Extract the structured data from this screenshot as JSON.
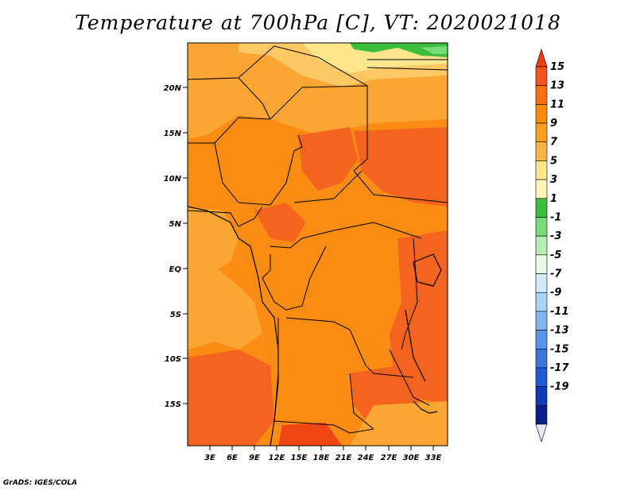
{
  "title": "Temperature at 700hPa [C], VT: 2020021018",
  "credit": "GrADS: IGES/COLA",
  "map": {
    "lat_labels": [
      "20N",
      "15N",
      "10N",
      "5N",
      "EQ",
      "5S",
      "10S",
      "15S"
    ],
    "lon_labels": [
      "3E",
      "6E",
      "9E",
      "12E",
      "15E",
      "18E",
      "21E",
      "24E",
      "27E",
      "30E",
      "33E"
    ]
  },
  "colorbar": {
    "labels": [
      "15",
      "13",
      "11",
      "9",
      "7",
      "5",
      "3",
      "1",
      "-1",
      "-3",
      "-5",
      "-7",
      "-9",
      "-11",
      "-13",
      "-15",
      "-17",
      "-19"
    ],
    "colors": [
      "#f03c14",
      "#f5501e",
      "#fa6e14",
      "#fa8c0a",
      "#fba01e",
      "#fcb446",
      "#fde68c",
      "#fff5b4",
      "#3cbe3c",
      "#78dc78",
      "#b4f0b4",
      "#e6fae6",
      "#d2ebfa",
      "#aad2fa",
      "#82b4f0",
      "#5a96e6",
      "#3c78dc",
      "#1e5ad2",
      "#0f3cb4",
      "#0a1e8c",
      "#e6e6fa"
    ]
  },
  "colors": {
    "c15": "#f04616",
    "c13": "#f5641e",
    "c11": "#fa8c14",
    "c9": "#fba532",
    "c7": "#fcc864",
    "c5": "#fde68c",
    "c3": "#3cbe3c"
  }
}
